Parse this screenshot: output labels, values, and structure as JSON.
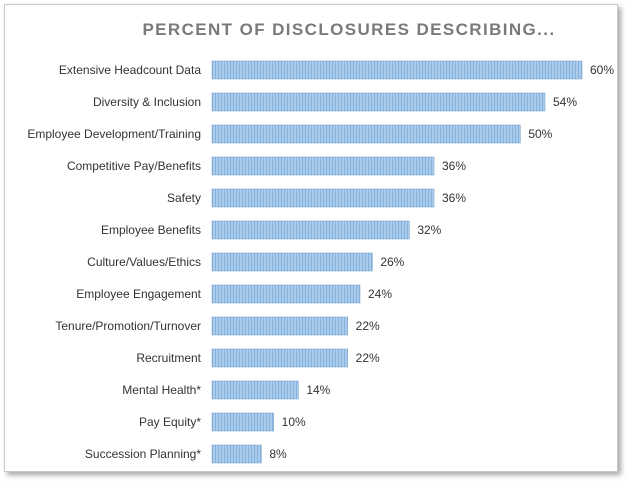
{
  "chart_data": {
    "type": "bar",
    "orientation": "horizontal",
    "title": "PERCENT OF DISCLOSURES DESCRIBING...",
    "xlabel": "",
    "ylabel": "",
    "xlim": [
      0,
      60
    ],
    "grid": false,
    "legend": "none",
    "bar_color": "#9dc3e6",
    "categories": [
      "Extensive Headcount Data",
      "Diversity & Inclusion",
      "Employee Development/Training",
      "Competitive Pay/Benefits",
      "Safety",
      "Employee Benefits",
      "Culture/Values/Ethics",
      "Employee Engagement",
      "Tenure/Promotion/Turnover",
      "Recruitment",
      "Mental Health*",
      "Pay Equity*",
      "Succession Planning*"
    ],
    "values": [
      60,
      54,
      50,
      36,
      36,
      32,
      26,
      24,
      22,
      22,
      14,
      10,
      8
    ],
    "value_labels": [
      "60%",
      "54%",
      "50%",
      "36%",
      "36%",
      "32%",
      "26%",
      "24%",
      "22%",
      "22%",
      "14%",
      "10%",
      "8%"
    ]
  }
}
